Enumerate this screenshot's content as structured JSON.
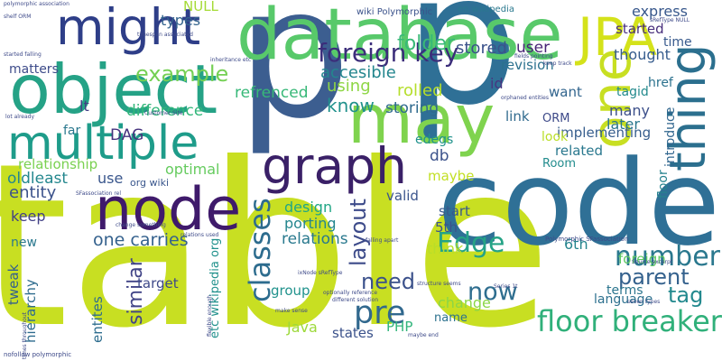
{
  "words": [
    {
      "text": "table",
      "color": "#c8df22"
    },
    {
      "text": "p",
      "color": "#3c5e90"
    },
    {
      "text": "code",
      "color": "#2f7096"
    },
    {
      "text": "p",
      "color": "#2f7096"
    },
    {
      "text": "database",
      "color": "#58c96a"
    },
    {
      "text": "object",
      "color": "#25a286"
    },
    {
      "text": "node",
      "color": "#3f1a6b"
    },
    {
      "text": "multiple",
      "color": "#1e9c8a"
    },
    {
      "text": "might",
      "color": "#2e3e88"
    },
    {
      "text": "graph",
      "color": "#3a2067"
    },
    {
      "text": "may",
      "color": "#7fd34e"
    },
    {
      "text": "JPA",
      "color": "#d4e21a"
    },
    {
      "text": "one",
      "color": "#c8df22"
    },
    {
      "text": "thing",
      "color": "#2b6f8e"
    },
    {
      "text": "floor breaker",
      "color": "#30b07a"
    },
    {
      "text": "foreign key",
      "color": "#3b2d7a"
    },
    {
      "text": "classes",
      "color": "#2d6c8e"
    },
    {
      "text": "Edge",
      "color": "#25a386"
    },
    {
      "text": "pre",
      "color": "#31688e"
    },
    {
      "text": "now",
      "color": "#2f6e8f"
    },
    {
      "text": "number",
      "color": "#2a788e"
    },
    {
      "text": "parent",
      "color": "#34618d"
    },
    {
      "text": "tag",
      "color": "#23898e"
    },
    {
      "text": "need",
      "color": "#3b518b"
    },
    {
      "text": "layout",
      "color": "#3d4b8a"
    },
    {
      "text": "similar",
      "color": "#414487"
    },
    {
      "text": "example",
      "color": "#75d054"
    },
    {
      "text": "folder",
      "color": "#38b977"
    },
    {
      "text": "accesible",
      "color": "#24868e"
    },
    {
      "text": "stored",
      "color": "#3b528b"
    },
    {
      "text": "user",
      "color": "#482475"
    },
    {
      "text": "express",
      "color": "#38588c"
    },
    {
      "text": "revision",
      "color": "#2c718e"
    },
    {
      "text": "started",
      "color": "#472d7b"
    },
    {
      "text": "types",
      "color": "#33638d"
    },
    {
      "text": "NULL",
      "color": "#a5db36"
    },
    {
      "text": "matters",
      "color": "#3e4c8a"
    },
    {
      "text": "refrenced",
      "color": "#37b878"
    },
    {
      "text": "using",
      "color": "#8ed645"
    },
    {
      "text": "rolled",
      "color": "#b5de2b"
    },
    {
      "text": "know",
      "color": "#21918c"
    },
    {
      "text": "storing",
      "color": "#306a8e"
    },
    {
      "text": "DAG",
      "color": "#46327e"
    },
    {
      "text": "difference",
      "color": "#32b67a"
    },
    {
      "text": "relationship",
      "color": "#7ad151"
    },
    {
      "text": "optimal",
      "color": "#65cb5e"
    },
    {
      "text": "oldleast",
      "color": "#24878e"
    },
    {
      "text": "entity",
      "color": "#3b528b"
    },
    {
      "text": "use",
      "color": "#39568c"
    },
    {
      "text": "org wiki",
      "color": "#39568c"
    },
    {
      "text": "keep",
      "color": "#424086"
    },
    {
      "text": "new",
      "color": "#2a788e"
    },
    {
      "text": "one carries",
      "color": "#34618d"
    },
    {
      "text": "design",
      "color": "#21a685"
    },
    {
      "text": "porting",
      "color": "#24868e"
    },
    {
      "text": "relations",
      "color": "#29798e"
    },
    {
      "text": "group",
      "color": "#20928c"
    },
    {
      "text": "target",
      "color": "#3e4989"
    },
    {
      "text": "hierarchy",
      "color": "#2f6c8e"
    },
    {
      "text": "tweak",
      "color": "#34608d"
    },
    {
      "text": "entites",
      "color": "#2e6d8e"
    },
    {
      "text": "etc wikipedia org",
      "color": "#21918c"
    },
    {
      "text": "Java",
      "color": "#9dd93b"
    },
    {
      "text": "states",
      "color": "#3b528b"
    },
    {
      "text": "PHP",
      "color": "#31b57b"
    },
    {
      "text": "name",
      "color": "#2c718e"
    },
    {
      "text": "change",
      "color": "#8bd646"
    },
    {
      "text": "terms",
      "color": "#2b758e"
    },
    {
      "text": "language",
      "color": "#2d708e"
    },
    {
      "text": "foreign",
      "color": "#5ec962"
    },
    {
      "text": "6th",
      "color": "#25848e"
    },
    {
      "text": "5th",
      "color": "#3b528b"
    },
    {
      "text": "start",
      "color": "#38598c"
    },
    {
      "text": "think",
      "color": "#b8de29"
    },
    {
      "text": "valid",
      "color": "#3a548c"
    },
    {
      "text": "maybe",
      "color": "#c2df23"
    },
    {
      "text": "Room",
      "color": "#228c8d"
    },
    {
      "text": "db",
      "color": "#3b528b"
    },
    {
      "text": "edegs",
      "color": "#20928c"
    },
    {
      "text": "related",
      "color": "#2a788e"
    },
    {
      "text": "implementing",
      "color": "#365d8d"
    },
    {
      "text": "look",
      "color": "#bade28"
    },
    {
      "text": "link",
      "color": "#306a8e"
    },
    {
      "text": "ORM",
      "color": "#3e4a89"
    },
    {
      "text": "id",
      "color": "#453781"
    },
    {
      "text": "lt",
      "color": "#433e85"
    },
    {
      "text": "far",
      "color": "#2a788e"
    },
    {
      "text": "many",
      "color": "#3c4f8a"
    },
    {
      "text": "later",
      "color": "#2a778e"
    },
    {
      "text": "thought",
      "color": "#365c8d"
    },
    {
      "text": "want",
      "color": "#32658e"
    },
    {
      "text": "href",
      "color": "#2c728e"
    },
    {
      "text": "tagid",
      "color": "#238a8d"
    },
    {
      "text": "time",
      "color": "#37598c"
    },
    {
      "text": "introduce",
      "color": "#31668e"
    },
    {
      "text": "floor",
      "color": "#26828e"
    },
    {
      "text": "wiki Polymorphic",
      "color": "#3b528b"
    },
    {
      "text": "en wikipedia",
      "color": "#2a788e"
    },
    {
      "text": "Polymorphic SFassociation",
      "color": "#3e4a89"
    },
    {
      "text": "polymorphic association",
      "color": "#3e4a89"
    },
    {
      "text": "Customer Site",
      "color": "#3e4a89"
    },
    {
      "text": "change something",
      "color": "#3e4a89"
    },
    {
      "text": "started falling",
      "color": "#3e4a89"
    },
    {
      "text": "lot already",
      "color": "#3e4a89"
    },
    {
      "text": "SFassociation rel",
      "color": "#3e4a89"
    },
    {
      "text": "nofollow polymorphic",
      "color": "#3e4a89"
    },
    {
      "text": "times throughout",
      "color": "#3e4a89"
    },
    {
      "text": "make sense",
      "color": "#3e4a89"
    },
    {
      "text": "optionally reference",
      "color": "#3e4a89"
    },
    {
      "text": "different solution",
      "color": "#3e4a89"
    },
    {
      "text": "maybe end",
      "color": "#3e4a89"
    },
    {
      "text": "falling apart",
      "color": "#3e4a89"
    },
    {
      "text": "Source excerpt",
      "color": "#3e4a89"
    },
    {
      "text": "seven types",
      "color": "#3e4a89"
    },
    {
      "text": "keep track",
      "color": "#3e4a89"
    },
    {
      "text": "fields pointing",
      "color": "#3e4a89"
    },
    {
      "text": "inheritance etc",
      "color": "#3e4a89"
    },
    {
      "text": "relations used",
      "color": "#3e4a89"
    },
    {
      "text": "orphaned entities",
      "color": "#3e4a89"
    },
    {
      "text": "structure seems",
      "color": "#3e4a89"
    },
    {
      "text": "Series 1t",
      "color": "#3e4a89"
    },
    {
      "text": "shelf ORM",
      "color": "#3e4a89"
    },
    {
      "text": "timespan associated",
      "color": "#3e4a89"
    },
    {
      "text": "flexible enough",
      "color": "#3e4a89"
    },
    {
      "text": "ixNode sRefType",
      "color": "#3e4a89"
    },
    {
      "text": "sRefType NULL",
      "color": "#3e4a89"
    }
  ]
}
